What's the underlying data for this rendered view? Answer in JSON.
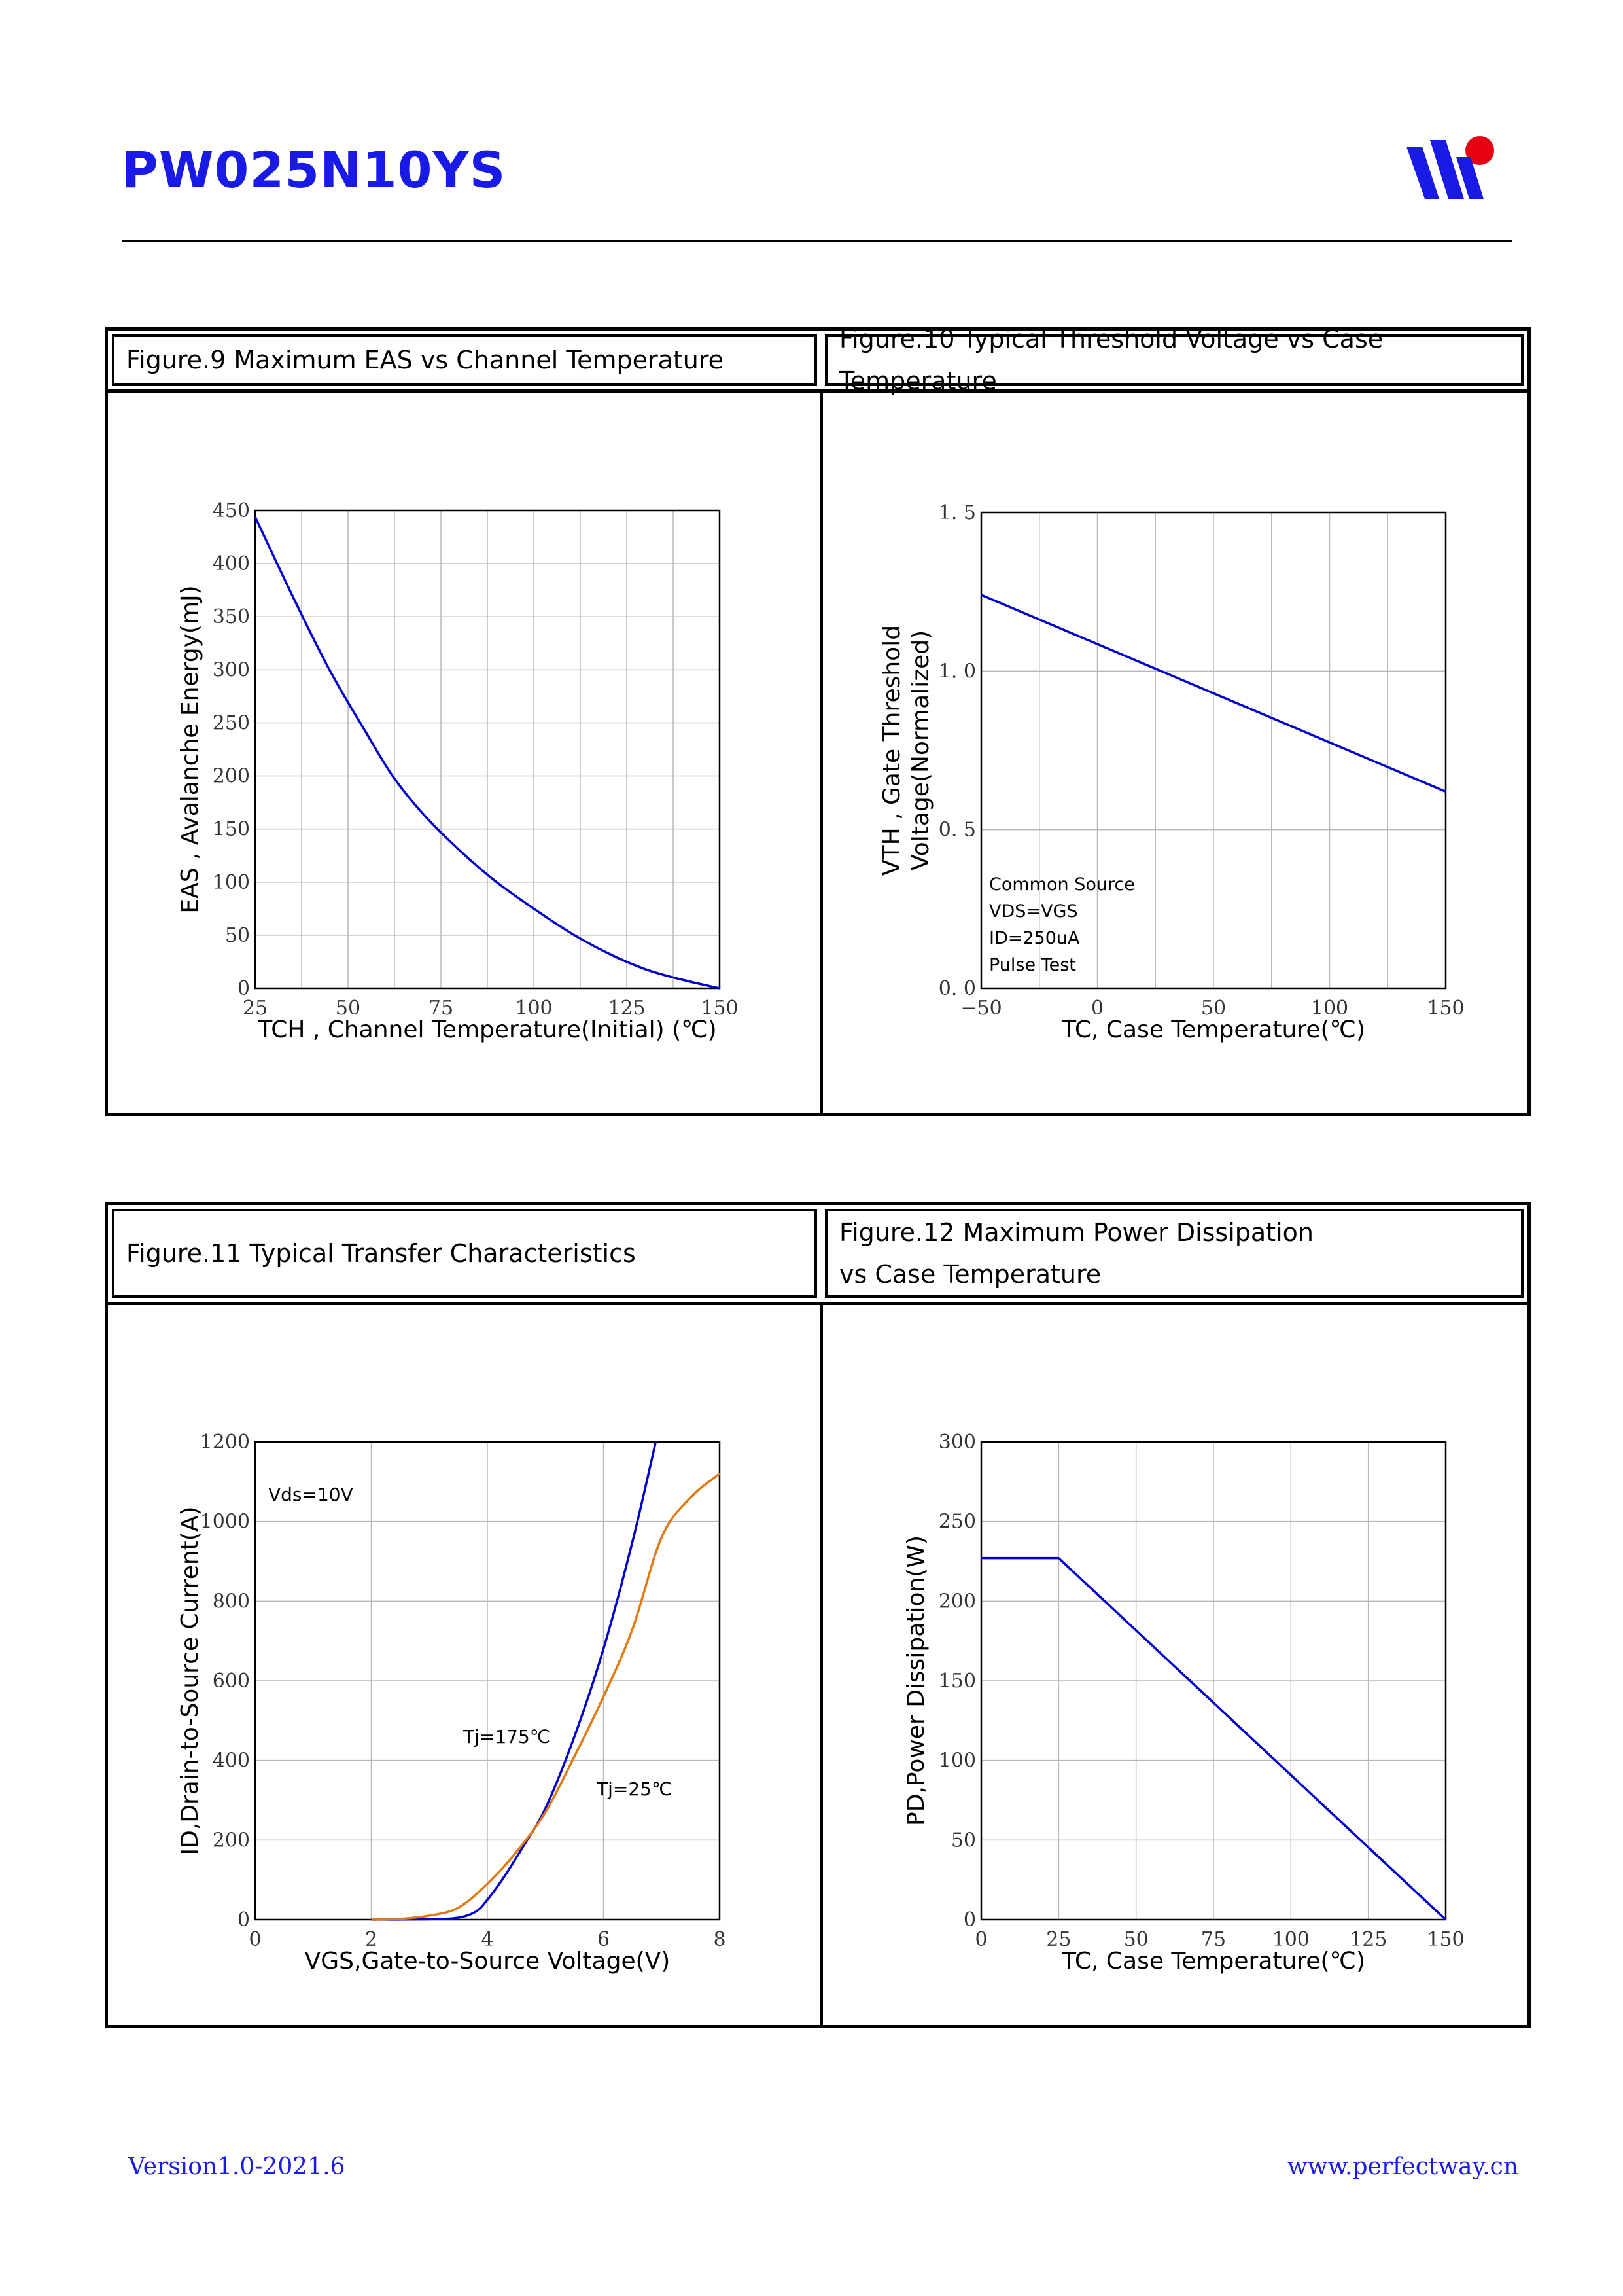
{
  "header": {
    "title": "PW025N10YS",
    "brand_colors": [
      "#1a1ae6",
      "#e60012"
    ]
  },
  "figures": {
    "fig9": {
      "title": "Figure.9 Maximum EAS vs Channel Temperature"
    },
    "fig10": {
      "title": "Figure.10 Typical Threshold Voltage vs Case Temperature"
    },
    "fig11": {
      "title": "Figure.11 Typical Transfer Characteristics"
    },
    "fig12": {
      "title_line1": "Figure.12 Maximum Power Dissipation",
      "title_line2": "vs Case Temperature"
    }
  },
  "footer": {
    "version": "Version1.0-2021.6",
    "website": "www.perfectway.cn"
  },
  "chart_data": [
    {
      "id": "fig9",
      "type": "line",
      "xlabel": "TCH , Channel Temperature(Initial) (℃)",
      "ylabel": "EAS , Avalanche Energy(mJ)",
      "xlim": [
        25,
        150
      ],
      "ylim": [
        0,
        450
      ],
      "xticks": [
        25,
        50,
        75,
        100,
        125,
        150
      ],
      "xtick_labels": [
        "25",
        "50",
        "75",
        "100",
        "125",
        "150"
      ],
      "yticks": [
        0,
        50,
        100,
        150,
        200,
        250,
        300,
        350,
        400,
        450
      ],
      "ytick_labels": [
        "0",
        "50",
        "100",
        "150",
        "200",
        "250",
        "300",
        "350",
        "400",
        "450"
      ],
      "xgrid": [
        25,
        37.5,
        50,
        62.5,
        75,
        87.5,
        100,
        112.5,
        125,
        137.5,
        150
      ],
      "ygrid": [
        0,
        50,
        100,
        150,
        200,
        250,
        300,
        350,
        400,
        450
      ],
      "annotations": [],
      "series": [
        {
          "name": "EAS",
          "color": "#0000cc",
          "x": [
            25,
            35,
            45,
            55,
            62,
            70,
            80,
            90,
            100,
            110,
            120,
            130,
            140,
            150
          ],
          "y": [
            444,
            370,
            300,
            240,
            200,
            165,
            130,
            100,
            75,
            52,
            33,
            18,
            8,
            0
          ]
        }
      ]
    },
    {
      "id": "fig10",
      "type": "line",
      "xlabel": "TC, Case Temperature(℃)",
      "ylabel_lines": [
        "VTH , Gate Threshold",
        "Voltage(Normalized)"
      ],
      "xlim": [
        -50,
        150
      ],
      "ylim": [
        0,
        1.5
      ],
      "xticks": [
        -50,
        0,
        50,
        100,
        150
      ],
      "xtick_labels": [
        "−50",
        "0",
        "50",
        "100",
        "150"
      ],
      "yticks": [
        0,
        0.5,
        1.0,
        1.5
      ],
      "ytick_labels": [
        "0. 0",
        "0. 5",
        "1. 0",
        "1. 5"
      ],
      "xgrid": [
        -50,
        -25,
        0,
        25,
        50,
        75,
        100,
        125,
        150
      ],
      "ygrid": [
        0,
        0.5,
        1.0,
        1.5
      ],
      "annotations": [
        "Common Source",
        "VDS=VGS",
        "ID=250uA",
        "Pulse Test"
      ],
      "series": [
        {
          "name": "VTH",
          "color": "#0000cc",
          "x": [
            -50,
            150
          ],
          "y": [
            1.24,
            0.62
          ]
        }
      ]
    },
    {
      "id": "fig11",
      "type": "line",
      "xlabel": "VGS,Gate-to-Source Voltage(V)",
      "ylabel": "ID,Drain-to-Source Current(A)",
      "xlim": [
        0,
        8
      ],
      "ylim": [
        0,
        1200
      ],
      "xticks": [
        0,
        2,
        4,
        6,
        8
      ],
      "xtick_labels": [
        "0",
        "2",
        "4",
        "6",
        "8"
      ],
      "yticks": [
        0,
        200,
        400,
        600,
        800,
        1000,
        1200
      ],
      "ytick_labels": [
        "0",
        "200",
        "400",
        "600",
        "800",
        "1000",
        "1200"
      ],
      "xgrid": [
        0,
        2,
        4,
        6,
        8
      ],
      "ygrid": [
        0,
        200,
        400,
        600,
        800,
        1000,
        1200
      ],
      "annotations": [
        "Vds=10V",
        "Tj=175℃",
        "Tj=25℃"
      ],
      "series": [
        {
          "name": "Tj=175℃",
          "color": "#0000cc",
          "x": [
            2,
            3,
            3.5,
            3.8,
            4.0,
            4.3,
            4.6,
            5.0,
            5.5,
            6.0,
            6.5,
            6.9
          ],
          "y": [
            0,
            1,
            5,
            20,
            50,
            110,
            180,
            280,
            460,
            680,
            950,
            1200
          ]
        },
        {
          "name": "Tj=25℃",
          "color": "#e07a10",
          "x": [
            2,
            2.5,
            3,
            3.5,
            4,
            4.5,
            5,
            5.5,
            6,
            6.5,
            7,
            7.5,
            8
          ],
          "y": [
            0,
            2,
            10,
            30,
            90,
            170,
            270,
            410,
            560,
            730,
            960,
            1060,
            1120
          ]
        }
      ]
    },
    {
      "id": "fig12",
      "type": "line",
      "xlabel": "TC, Case Temperature(℃)",
      "ylabel": "PD,Power Dissipation(W)",
      "xlim": [
        0,
        150
      ],
      "ylim": [
        0,
        300
      ],
      "xticks": [
        0,
        25,
        50,
        75,
        100,
        125,
        150
      ],
      "xtick_labels": [
        "0",
        "25",
        "50",
        "75",
        "100",
        "125",
        "150"
      ],
      "yticks": [
        0,
        50,
        100,
        150,
        200,
        250,
        300
      ],
      "ytick_labels": [
        "0",
        "50",
        "100",
        "150",
        "200",
        "250",
        "300"
      ],
      "xgrid": [
        0,
        25,
        50,
        75,
        100,
        125,
        150
      ],
      "ygrid": [
        0,
        50,
        100,
        150,
        200,
        250,
        300
      ],
      "annotations": [],
      "series": [
        {
          "name": "PD",
          "color": "#0000cc",
          "x": [
            0,
            25,
            150
          ],
          "y": [
            227,
            227,
            0
          ]
        }
      ]
    }
  ]
}
